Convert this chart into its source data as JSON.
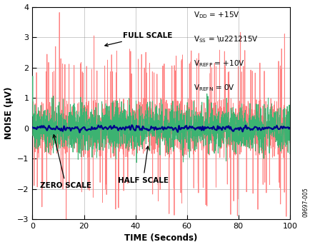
{
  "xlabel": "TIME (Seconds)",
  "ylabel": "NOISE (μV)",
  "xlim": [
    0,
    100
  ],
  "ylim": [
    -3,
    4
  ],
  "yticks": [
    -3,
    -2,
    -1,
    0,
    1,
    2,
    3,
    4
  ],
  "xticks": [
    0,
    20,
    40,
    60,
    80,
    100
  ],
  "full_scale_color": "#FF8080",
  "half_scale_color": "#3CB371",
  "zero_scale_color": "#00008B",
  "grid_color": "#888888",
  "background_color": "#FFFFFF",
  "annotation_text_fs": "FULL SCALE",
  "annotation_text_hs": "HALF SCALE",
  "annotation_text_zs": "ZERO SCALE",
  "watermark": "09697-005",
  "n_points": 2000
}
